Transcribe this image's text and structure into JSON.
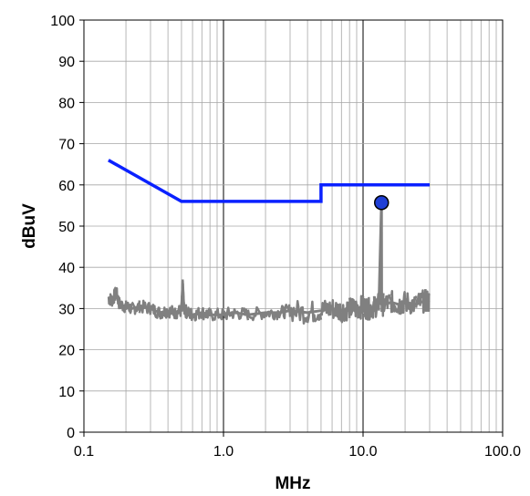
{
  "chart_data": {
    "type": "line",
    "title": "",
    "xlabel": "MHz",
    "ylabel": "dBuV",
    "xscale": "log",
    "xlim": [
      0.1,
      100.0
    ],
    "ylim": [
      0,
      100
    ],
    "grid": true,
    "x_tick_labels": [
      "0.1",
      "1.0",
      "10.0",
      "100.0"
    ],
    "y_tick_labels": [
      "0",
      "10",
      "20",
      "30",
      "40",
      "50",
      "60",
      "70",
      "80",
      "90",
      "100"
    ],
    "colors": {
      "limit_line": "#0a21ff",
      "emission_trace": "#808080",
      "peak_marker": "#1f3fd6",
      "grid": "#a6a6a6"
    },
    "series": [
      {
        "style": "limit-line",
        "x": [
          0.15,
          0.5,
          5.0,
          5.0,
          30.0
        ],
        "y": [
          66,
          56,
          56,
          60,
          60
        ]
      },
      {
        "style": "emission-trace",
        "x": [
          0.15,
          0.16,
          0.17,
          0.18,
          0.2,
          0.22,
          0.25,
          0.3,
          0.35,
          0.4,
          0.45,
          0.5,
          0.51,
          0.52,
          0.55,
          0.6,
          0.7,
          0.8,
          1.0,
          1.2,
          1.5,
          2.0,
          2.5,
          3.0,
          4.0,
          5.0,
          6.0,
          7.0,
          8.0,
          9.0,
          10.0,
          11.0,
          12.0,
          13.0,
          13.56,
          13.6,
          14.0,
          16.0,
          18.0,
          20.0,
          24.0,
          28.0,
          30.0
        ],
        "y": [
          32.5,
          32,
          34,
          31,
          30.5,
          30,
          30.5,
          30,
          29,
          29.5,
          29,
          29.5,
          36,
          30,
          29,
          28.5,
          29,
          28.5,
          28.5,
          29,
          28.5,
          29,
          29,
          29.5,
          29,
          29.5,
          30,
          29.5,
          30,
          30,
          30.5,
          30,
          30.5,
          31,
          55.7,
          31,
          31,
          31.5,
          31,
          31.5,
          31,
          32,
          31.5
        ]
      }
    ],
    "markers": [
      {
        "x": 13.56,
        "y": 55.7
      }
    ]
  }
}
